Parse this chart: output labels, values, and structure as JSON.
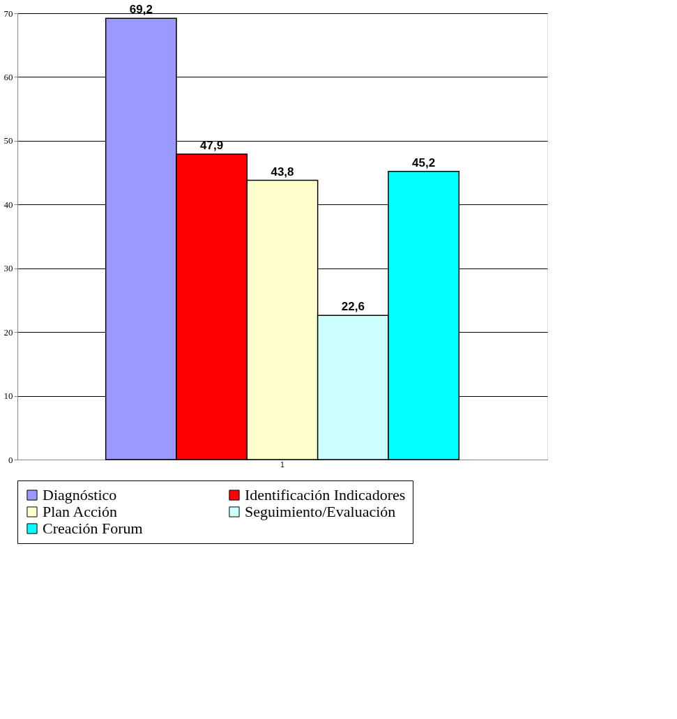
{
  "chart_data": {
    "type": "bar",
    "categories": [
      "1"
    ],
    "series": [
      {
        "name": "Diagnóstico",
        "color": "#9999ff",
        "values": [
          69.2
        ],
        "value_labels": [
          "69,2"
        ]
      },
      {
        "name": "Identificación Indicadores",
        "color": "#ff0000",
        "values": [
          47.9
        ],
        "value_labels": [
          "47,9"
        ]
      },
      {
        "name": "Plan Acción",
        "color": "#ffffcc",
        "values": [
          43.8
        ],
        "value_labels": [
          "43,8"
        ]
      },
      {
        "name": "Seguimiento/Evaluación",
        "color": "#ccffff",
        "values": [
          22.6
        ],
        "value_labels": [
          "22,6"
        ]
      },
      {
        "name": "Creación Forum",
        "color": "#00ffff",
        "values": [
          45.2
        ],
        "value_labels": [
          "45,2"
        ]
      }
    ],
    "ylim": [
      0,
      70
    ],
    "yticks": [
      0,
      10,
      20,
      30,
      40,
      50,
      60,
      70
    ],
    "grid": "y",
    "legend": "bottom"
  }
}
